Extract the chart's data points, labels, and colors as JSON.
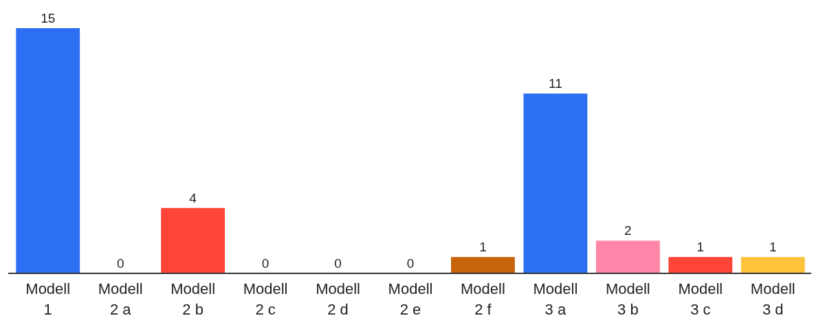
{
  "chart_data": {
    "type": "bar",
    "categories": [
      "Modell 1",
      "Modell 2 a",
      "Modell 2 b",
      "Modell 2 c",
      "Modell 2 d",
      "Modell 2 e",
      "Modell 2 f",
      "Modell 3 a",
      "Modell 3 b",
      "Modell 3 c",
      "Modell 3 d"
    ],
    "values": [
      15,
      0,
      4,
      0,
      0,
      0,
      1,
      11,
      2,
      1,
      1
    ],
    "colors": [
      "#2d6ff2",
      "#2d6ff2",
      "#ff4438",
      "#ff4438",
      "#ff4438",
      "#ff4438",
      "#c8650c",
      "#2d6ff2",
      "#ff86a8",
      "#ff4438",
      "#fec43c"
    ],
    "data_labels": true
  }
}
